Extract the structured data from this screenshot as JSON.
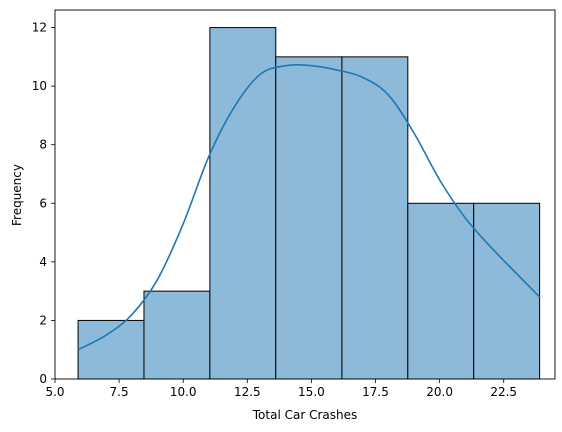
{
  "chart_data": {
    "type": "bar",
    "title": "",
    "xlabel": "Total Car Crashes",
    "ylabel": "Frequency",
    "xlim": [
      5.0,
      24.5
    ],
    "ylim": [
      0,
      12.6
    ],
    "xticks": [
      5.0,
      7.5,
      10.0,
      12.5,
      15.0,
      17.5,
      20.0,
      22.5
    ],
    "xtick_labels": [
      "5.0",
      "7.5",
      "10.0",
      "12.5",
      "15.0",
      "17.5",
      "20.0",
      "22.5"
    ],
    "yticks": [
      0,
      2,
      4,
      6,
      8,
      10,
      12
    ],
    "ytick_labels": [
      "0",
      "2",
      "4",
      "6",
      "8",
      "10",
      "12"
    ],
    "bins": [
      {
        "start": 5.9,
        "end": 8.47,
        "count": 2
      },
      {
        "start": 8.47,
        "end": 11.04,
        "count": 3
      },
      {
        "start": 11.04,
        "end": 13.61,
        "count": 12
      },
      {
        "start": 13.61,
        "end": 16.19,
        "count": 11
      },
      {
        "start": 16.19,
        "end": 18.76,
        "count": 11
      },
      {
        "start": 18.76,
        "end": 21.33,
        "count": 6
      },
      {
        "start": 21.33,
        "end": 23.9,
        "count": 6
      }
    ],
    "kde": {
      "x": [
        5.9,
        7.0,
        8.0,
        9.0,
        10.0,
        11.0,
        12.0,
        13.0,
        14.0,
        15.0,
        16.0,
        17.0,
        18.0,
        19.0,
        20.0,
        21.0,
        22.0,
        23.0,
        23.9
      ],
      "y": [
        1.0,
        1.5,
        2.2,
        3.4,
        5.3,
        7.6,
        9.3,
        10.4,
        10.7,
        10.7,
        10.55,
        10.3,
        9.7,
        8.4,
        6.8,
        5.5,
        4.5,
        3.6,
        2.8
      ]
    },
    "bar_color": "#8ebad9",
    "edge_color": "#000000",
    "kde_color": "#1f77b4",
    "grid": false
  }
}
